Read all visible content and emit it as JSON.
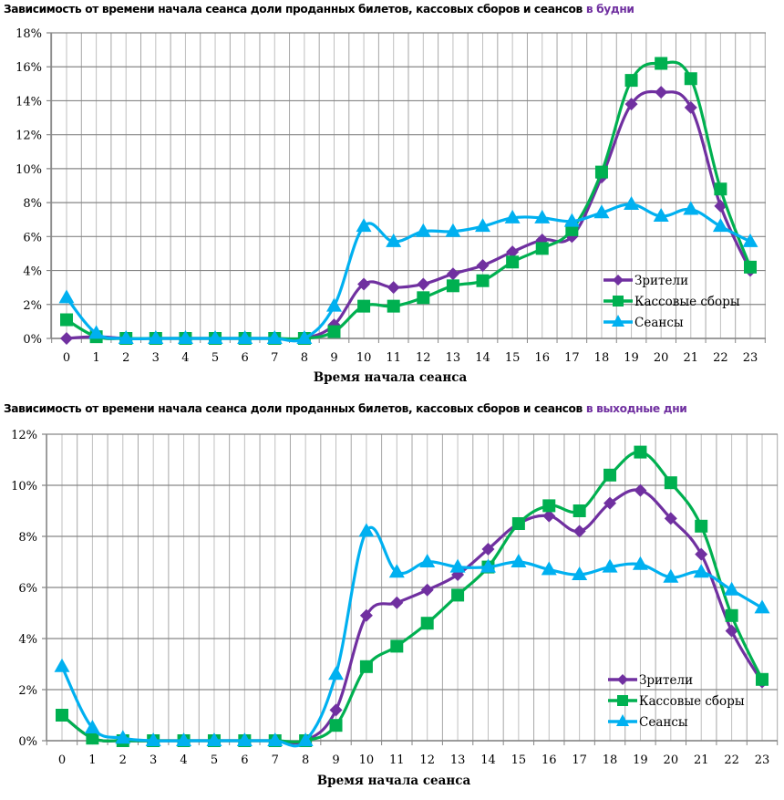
{
  "chart_data": [
    {
      "type": "line",
      "title": "Зависимость от времени начала сеанса доли проданных билетов, кассовых сборов и сеансов",
      "title_highlight": "в будни",
      "xlabel": "Время начала сеанса",
      "ylabel": "",
      "categories": [
        "0",
        "1",
        "2",
        "3",
        "4",
        "5",
        "6",
        "7",
        "8",
        "9",
        "10",
        "11",
        "12",
        "13",
        "14",
        "15",
        "16",
        "17",
        "18",
        "19",
        "20",
        "21",
        "22",
        "23"
      ],
      "ylim": [
        0,
        18
      ],
      "yticks": [
        0,
        2,
        4,
        6,
        8,
        10,
        12,
        14,
        16,
        18
      ],
      "ytick_format": "%",
      "grid": true,
      "legend_position": "bottom-right",
      "series": [
        {
          "name": "Зрители",
          "color": "#7030a0",
          "marker": "diamond",
          "values": [
            0.0,
            0.1,
            0,
            0,
            0,
            0,
            0,
            0,
            0,
            0.8,
            3.2,
            3.0,
            3.2,
            3.8,
            4.3,
            5.1,
            5.8,
            6.0,
            9.5,
            13.8,
            14.5,
            13.6,
            7.8,
            4.0
          ]
        },
        {
          "name": "Кассовые сборы",
          "color": "#00b050",
          "marker": "square",
          "values": [
            1.1,
            0.1,
            0,
            0,
            0,
            0,
            0,
            0,
            0,
            0.4,
            1.9,
            1.9,
            2.4,
            3.1,
            3.4,
            4.5,
            5.3,
            6.4,
            9.8,
            15.2,
            16.2,
            15.3,
            8.8,
            4.2
          ]
        },
        {
          "name": "Сеансы",
          "color": "#00b0f0",
          "marker": "triangle",
          "values": [
            2.4,
            0.3,
            0,
            0,
            0,
            0,
            0,
            0,
            0,
            1.9,
            6.6,
            5.7,
            6.3,
            6.3,
            6.6,
            7.1,
            7.1,
            6.9,
            7.4,
            7.9,
            7.2,
            7.6,
            6.6,
            5.7
          ]
        }
      ]
    },
    {
      "type": "line",
      "title": "Зависимость от времени начала сеанса доли проданных билетов, кассовых сборов и сеансов",
      "title_highlight": "в выходные дни",
      "xlabel": "Время начала сеанса",
      "ylabel": "",
      "categories": [
        "0",
        "1",
        "2",
        "3",
        "4",
        "5",
        "6",
        "7",
        "8",
        "9",
        "10",
        "11",
        "12",
        "13",
        "14",
        "15",
        "16",
        "17",
        "18",
        "19",
        "20",
        "21",
        "22",
        "23"
      ],
      "ylim": [
        0,
        12
      ],
      "yticks": [
        0,
        2,
        4,
        6,
        8,
        10,
        12
      ],
      "ytick_format": "%",
      "grid": true,
      "legend_position": "bottom-right",
      "series": [
        {
          "name": "Зрители",
          "color": "#7030a0",
          "marker": "diamond",
          "values": [
            1.0,
            0.1,
            0,
            0,
            0,
            0,
            0,
            0,
            0,
            1.2,
            4.9,
            5.4,
            5.9,
            6.5,
            7.5,
            8.5,
            8.8,
            8.2,
            9.3,
            9.8,
            8.7,
            7.3,
            4.3,
            2.3
          ]
        },
        {
          "name": "Кассовые сборы",
          "color": "#00b050",
          "marker": "square",
          "values": [
            1.0,
            0.1,
            0,
            0,
            0,
            0,
            0,
            0,
            0,
            0.6,
            2.9,
            3.7,
            4.6,
            5.7,
            6.8,
            8.5,
            9.2,
            9.0,
            10.4,
            11.3,
            10.1,
            8.4,
            4.9,
            2.4
          ]
        },
        {
          "name": "Сеансы",
          "color": "#00b0f0",
          "marker": "triangle",
          "values": [
            2.9,
            0.5,
            0.1,
            0,
            0,
            0,
            0,
            0,
            0,
            2.6,
            8.2,
            6.6,
            7.0,
            6.8,
            6.8,
            7.0,
            6.7,
            6.5,
            6.8,
            6.9,
            6.4,
            6.6,
            5.9,
            5.2
          ]
        }
      ]
    }
  ]
}
